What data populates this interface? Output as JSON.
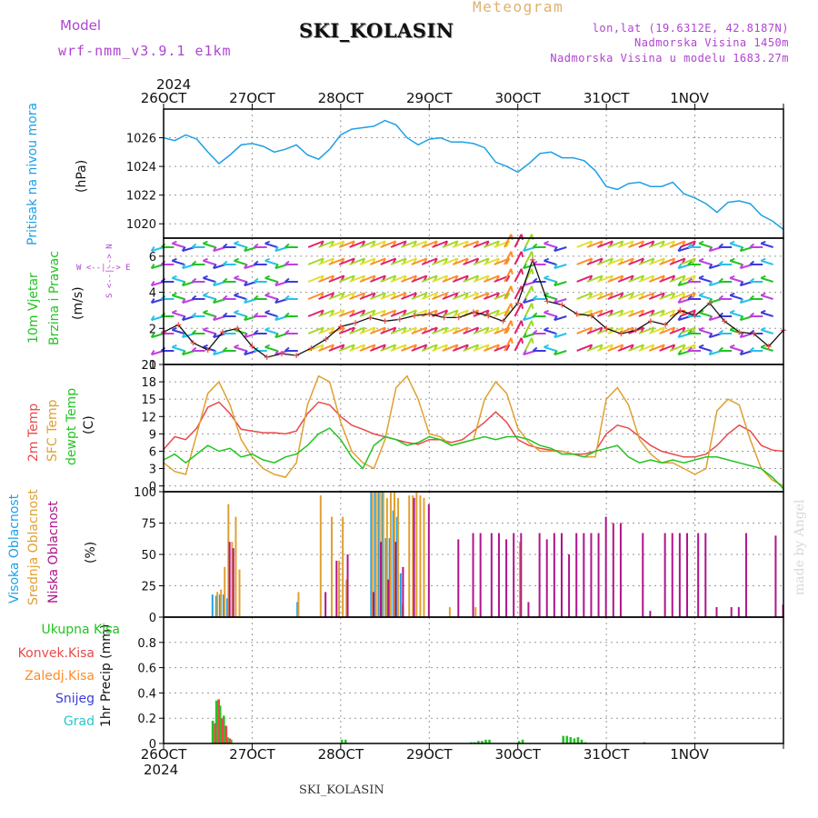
{
  "header": {
    "model_label": "Model",
    "model_name": "wrf-nmm_v3.9.1  e1km",
    "title": "SKI_KOLASIN",
    "meteogram": "Meteogram",
    "lonlat": "lon,lat (19.6312E, 42.8187N)",
    "altitude": "Nadmorska Visina 1450m",
    "model_altitude": "Nadmorska Visina u modelu 1683.27m",
    "footer_title": "SKI_KOLASIN",
    "watermark": "made by Angel"
  },
  "colors": {
    "pressure": "#1ea0e6",
    "temp2m": "#e84a4a",
    "sfc": "#e0a030",
    "dewpt": "#22c422",
    "high_cloud": "#1ea0e6",
    "mid_cloud": "#e0a030",
    "low_cloud": "#b0148c",
    "total_precip": "#22c422",
    "conv_precip": "#e84a4a",
    "freezing": "#ff8c28",
    "snow": "#3c3cdc",
    "hail": "#28c8c8",
    "axis_label_wind": "#22c422",
    "purple": "#b044d0",
    "meteogram": "#e0b070"
  },
  "time_axis": {
    "year": "2024",
    "ticks": [
      "26OCT",
      "27OCT",
      "28OCT",
      "29OCT",
      "30OCT",
      "31OCT",
      "1NOV"
    ]
  },
  "panel_labels": {
    "pressure": {
      "name": "Pritisak na nivou mora",
      "unit": "(hPa)"
    },
    "wind": {
      "line1": "10m Vjetar",
      "line2": "Brzina i Pravac",
      "unit": "(m/s)",
      "compass_ns": "S <--|--> N",
      "compass_we": "W  <--|-->  E"
    },
    "temp": {
      "t2m": "2m Temp",
      "sfc": "SFC Temp",
      "dew": "dewpt Temp",
      "unit": "(C)"
    },
    "cloud": {
      "high": "Visoka Oblacnost",
      "mid": "Srednja Oblacnost",
      "low": "Niska Oblacnost",
      "unit": "(%)"
    },
    "precip": {
      "unit": "1hr Precip (mm)",
      "legend": [
        "Ukupna Kisa",
        "Konvek.Kisa",
        "Zaledj.Kisa",
        "Snijeg",
        "Grad"
      ]
    }
  },
  "chart_data": [
    {
      "type": "line",
      "panel": "pressure",
      "ylim": [
        1019,
        1028
      ],
      "yticks": [
        1020,
        1022,
        1024,
        1026
      ],
      "series": [
        {
          "x_hours": [
            0,
            3,
            6,
            9,
            12,
            15,
            18,
            21,
            24,
            27,
            30,
            33,
            36,
            39,
            42,
            45,
            48,
            51,
            54,
            57,
            60,
            63,
            66,
            69,
            72,
            75,
            78,
            81,
            84,
            87,
            90,
            93,
            96,
            99,
            102,
            105,
            108,
            111,
            114,
            117,
            120,
            123,
            126,
            129,
            132,
            135,
            138,
            141,
            144,
            147,
            150,
            153,
            156,
            159,
            162,
            165,
            168
          ],
          "values": [
            1026.0,
            1025.8,
            1026.2,
            1025.9,
            1025.0,
            1024.2,
            1024.8,
            1025.5,
            1025.6,
            1025.4,
            1025.0,
            1025.2,
            1025.5,
            1024.8,
            1024.5,
            1025.2,
            1026.2,
            1026.6,
            1026.7,
            1026.8,
            1027.2,
            1026.9,
            1026.0,
            1025.5,
            1025.9,
            1026.0,
            1025.7,
            1025.7,
            1025.6,
            1025.3,
            1024.3,
            1024.0,
            1023.6,
            1024.2,
            1024.9,
            1025.0,
            1024.6,
            1024.6,
            1024.4,
            1023.7,
            1022.6,
            1022.4,
            1022.8,
            1022.9,
            1022.6,
            1022.6,
            1022.9,
            1022.1,
            1021.8,
            1021.4,
            1020.8,
            1021.5,
            1021.6,
            1021.4,
            1020.6,
            1020.2,
            1019.6
          ]
        }
      ]
    },
    {
      "type": "line",
      "panel": "wind",
      "ylabel": "(m/s)",
      "ylim": [
        0,
        7
      ],
      "yticks": [
        0,
        2,
        4,
        6
      ],
      "series": [
        {
          "x_hours": [
            0,
            4,
            8,
            12,
            16,
            20,
            24,
            28,
            32,
            36,
            40,
            44,
            48,
            52,
            56,
            60,
            64,
            68,
            72,
            76,
            80,
            84,
            88,
            92,
            96,
            100,
            104,
            108,
            112,
            116,
            120,
            124,
            128,
            132,
            136,
            140,
            144,
            148,
            152,
            156,
            160,
            164,
            168
          ],
          "values": [
            1.8,
            2.2,
            1.2,
            0.8,
            1.8,
            2.0,
            1.0,
            0.4,
            0.6,
            0.5,
            0.9,
            1.4,
            2.1,
            2.3,
            2.6,
            2.4,
            2.5,
            2.7,
            2.8,
            2.6,
            2.6,
            2.9,
            2.7,
            2.4,
            3.4,
            5.8,
            3.5,
            3.3,
            2.8,
            2.7,
            2.0,
            1.7,
            1.9,
            2.4,
            2.2,
            3.0,
            2.7,
            3.4,
            2.4,
            1.8,
            1.7,
            1.0,
            1.9
          ]
        }
      ]
    },
    {
      "type": "line",
      "panel": "temp",
      "ylim": [
        -1,
        21
      ],
      "yticks": [
        0,
        3,
        6,
        9,
        12,
        15,
        18,
        21
      ],
      "x_hours": [
        0,
        3,
        6,
        9,
        12,
        15,
        18,
        21,
        24,
        27,
        30,
        33,
        36,
        39,
        42,
        45,
        48,
        51,
        54,
        57,
        60,
        63,
        66,
        69,
        72,
        75,
        78,
        81,
        84,
        87,
        90,
        93,
        96,
        99,
        102,
        105,
        108,
        111,
        114,
        117,
        120,
        123,
        126,
        129,
        132,
        135,
        138,
        141,
        144,
        147,
        150,
        153,
        156,
        159,
        162,
        165,
        168
      ],
      "series": [
        {
          "name": "2m Temp",
          "values": [
            6.3,
            8.5,
            8.0,
            10.0,
            13.6,
            14.5,
            12.5,
            9.8,
            9.5,
            9.2,
            9.2,
            9.0,
            9.5,
            12.5,
            14.5,
            14.0,
            12.0,
            10.5,
            9.8,
            9.0,
            8.5,
            8.0,
            7.5,
            7.2,
            8.0,
            8.0,
            7.5,
            8.0,
            9.5,
            11.0,
            12.8,
            11.0,
            8.0,
            7.0,
            6.5,
            6.2,
            6.0,
            5.5,
            5.5,
            6.0,
            9.0,
            10.5,
            10.0,
            8.5,
            7.0,
            6.0,
            5.5,
            5.0,
            5.0,
            5.5,
            7.0,
            9.0,
            10.5,
            9.5,
            7.0,
            6.2,
            6.0
          ]
        },
        {
          "name": "SFC Temp",
          "values": [
            4.0,
            2.5,
            2.0,
            9.0,
            16.0,
            18.0,
            14.0,
            8.0,
            5.0,
            3.0,
            2.0,
            1.5,
            4.0,
            14.0,
            19.0,
            18.0,
            11.0,
            6.0,
            4.0,
            3.0,
            8.0,
            17.0,
            19.0,
            15.0,
            9.0,
            8.5,
            7.0,
            7.5,
            8.0,
            15.0,
            18.0,
            16.0,
            10.0,
            7.5,
            6.0,
            6.0,
            6.0,
            5.5,
            5.0,
            5.0,
            15.0,
            17.0,
            14.0,
            8.0,
            5.5,
            4.0,
            4.0,
            3.0,
            2.0,
            3.0,
            13.0,
            15.0,
            14.0,
            8.0,
            3.0,
            1.0,
            0.0
          ]
        },
        {
          "name": "dewpt Temp",
          "values": [
            4.5,
            5.5,
            4.0,
            5.5,
            7.0,
            6.0,
            6.5,
            5.0,
            5.5,
            4.5,
            4.0,
            5.0,
            5.5,
            7.0,
            9.0,
            10.0,
            8.0,
            5.0,
            3.0,
            7.0,
            8.5,
            8.0,
            7.0,
            7.5,
            8.5,
            8.0,
            7.0,
            7.5,
            8.0,
            8.5,
            8.0,
            8.5,
            8.5,
            8.0,
            7.0,
            6.5,
            5.5,
            5.5,
            5.0,
            6.0,
            6.5,
            7.0,
            5.0,
            4.0,
            4.5,
            4.0,
            4.5,
            4.0,
            4.5,
            5.0,
            5.0,
            4.5,
            4.0,
            3.5,
            3.0,
            1.5,
            -0.5
          ]
        }
      ]
    },
    {
      "type": "bar",
      "panel": "cloud",
      "ylim": [
        0,
        100
      ],
      "yticks": [
        0,
        25,
        50,
        75,
        100
      ],
      "series": [
        {
          "name": "Visoka Oblacnost",
          "x_hours": [
            13,
            14,
            15,
            16,
            17,
            36,
            56,
            57,
            58,
            59,
            60,
            61,
            62,
            63,
            64
          ],
          "values": [
            18,
            17,
            18,
            18,
            15,
            12,
            100,
            100,
            100,
            100,
            63,
            63,
            85,
            80,
            35
          ]
        },
        {
          "name": "Srednja Oblacnost",
          "x_hours": [
            14,
            15,
            16,
            17,
            18,
            19,
            20,
            36,
            42,
            45,
            47,
            48,
            49,
            56,
            57,
            58,
            59,
            60,
            61,
            62,
            63,
            64,
            66,
            67,
            68,
            69,
            70,
            77,
            84,
            96
          ],
          "values": [
            20,
            22,
            40,
            90,
            60,
            80,
            38,
            20,
            97,
            80,
            45,
            80,
            30,
            100,
            100,
            100,
            100,
            95,
            100,
            100,
            95,
            10,
            97,
            97,
            100,
            97,
            95,
            8,
            8,
            60
          ]
        },
        {
          "name": "Niska Oblacnost",
          "x_hours": [
            17,
            18,
            43,
            46,
            49,
            56,
            58,
            60,
            62,
            64,
            67,
            71,
            79,
            83,
            85,
            88,
            90,
            92,
            94,
            96,
            98,
            101,
            103,
            105,
            107,
            109,
            111,
            113,
            115,
            117,
            119,
            121,
            123,
            129,
            131,
            135,
            137,
            139,
            141,
            144,
            146,
            149,
            153,
            155,
            157,
            165,
            167
          ],
          "values": [
            60,
            55,
            20,
            45,
            50,
            20,
            60,
            30,
            60,
            40,
            95,
            90,
            62,
            67,
            67,
            67,
            67,
            62,
            67,
            67,
            12,
            67,
            62,
            67,
            67,
            50,
            67,
            67,
            67,
            67,
            80,
            75,
            75,
            67,
            5,
            67,
            67,
            67,
            67,
            67,
            67,
            8,
            8,
            8,
            67,
            65,
            10
          ]
        }
      ]
    },
    {
      "type": "bar",
      "panel": "precip",
      "ylim": [
        0,
        1.0
      ],
      "yticks": [
        0,
        0.2,
        0.4,
        0.6,
        0.8
      ],
      "series": [
        {
          "name": "Ukupna Kisa",
          "x_hours": [
            13,
            14,
            15,
            16,
            17,
            18,
            48,
            49,
            83,
            84,
            85,
            86,
            87,
            88,
            96,
            97,
            108,
            109,
            110,
            111,
            112,
            113,
            114,
            130
          ],
          "values": [
            0.18,
            0.34,
            0.3,
            0.22,
            0.05,
            0.03,
            0.03,
            0.03,
            0.01,
            0.01,
            0.02,
            0.02,
            0.03,
            0.03,
            0.02,
            0.03,
            0.06,
            0.06,
            0.05,
            0.04,
            0.05,
            0.03,
            0.01,
            0.01
          ]
        },
        {
          "name": "Konvek.Kisa",
          "x_hours": [
            13,
            14,
            15,
            16,
            17
          ],
          "values": [
            0.16,
            0.35,
            0.2,
            0.14,
            0.04
          ]
        },
        {
          "name": "Zaledj.Kisa",
          "x_hours": [],
          "values": []
        },
        {
          "name": "Snijeg",
          "x_hours": [],
          "values": []
        },
        {
          "name": "Grad",
          "x_hours": [],
          "values": []
        }
      ]
    }
  ]
}
